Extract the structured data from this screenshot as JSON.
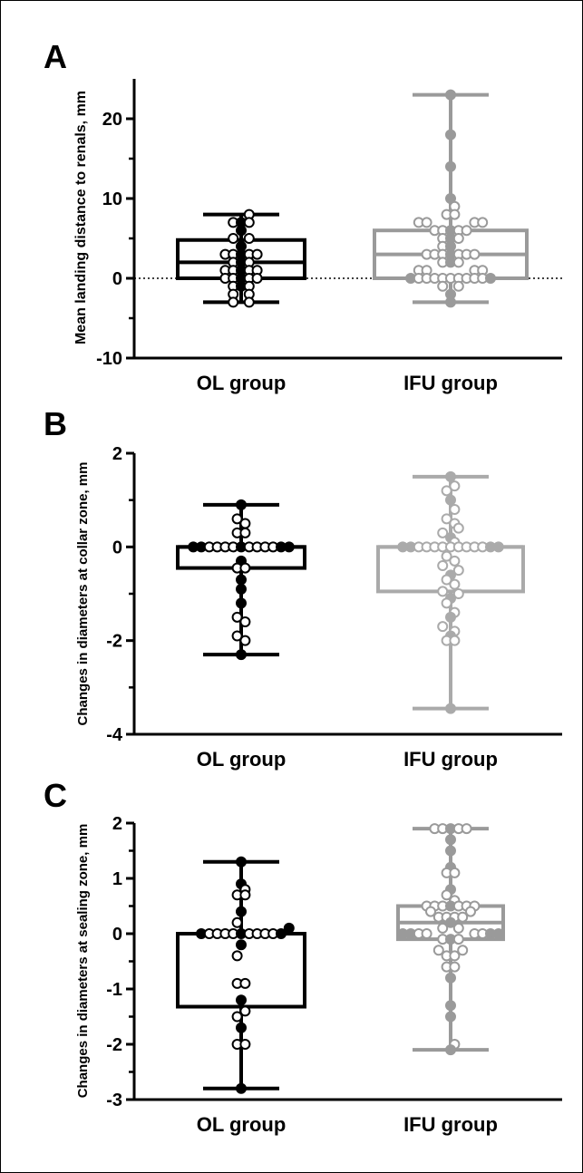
{
  "chart_data": [
    {
      "type": "box",
      "panel_label": "A",
      "ylabel": "Mean landing distance to renals, mm",
      "ylim": [
        -10,
        25
      ],
      "yticks": [
        -10,
        0,
        10,
        20
      ],
      "reference_line": 0,
      "categories": [
        "OL group",
        "IFU group"
      ],
      "colors": [
        "#000000",
        "#9a9a9a"
      ],
      "boxes": [
        {
          "min": -3,
          "q1": 0,
          "median": 2,
          "q3": 4.8,
          "max": 8
        },
        {
          "min": -3,
          "q1": 0,
          "median": 3,
          "q3": 6,
          "max": 23
        }
      ],
      "points": [
        [
          [
            8,
            1
          ],
          [
            7,
            -1
          ],
          [
            7,
            0
          ],
          [
            7,
            1
          ],
          [
            6,
            0
          ],
          [
            5,
            -1
          ],
          [
            5,
            1
          ],
          [
            4,
            0
          ],
          [
            3,
            -2
          ],
          [
            3,
            -1
          ],
          [
            3,
            0
          ],
          [
            3,
            1
          ],
          [
            3,
            2
          ],
          [
            2,
            -1
          ],
          [
            2,
            0
          ],
          [
            2,
            1
          ],
          [
            1,
            -2
          ],
          [
            1,
            -1
          ],
          [
            1,
            0
          ],
          [
            1,
            1
          ],
          [
            1,
            2
          ],
          [
            0,
            -2
          ],
          [
            0,
            -1
          ],
          [
            0,
            0
          ],
          [
            0,
            1
          ],
          [
            0,
            2
          ],
          [
            -1,
            -1
          ],
          [
            -1,
            0
          ],
          [
            -1,
            1
          ],
          [
            -2,
            -1
          ],
          [
            -2,
            1
          ],
          [
            -3,
            -1
          ],
          [
            -3,
            1
          ]
        ],
        [
          [
            23,
            0
          ],
          [
            18,
            0
          ],
          [
            14,
            0
          ],
          [
            10,
            0
          ],
          [
            9,
            0.5
          ],
          [
            8,
            -0.5
          ],
          [
            8,
            0.5
          ],
          [
            7,
            -4
          ],
          [
            7,
            -3
          ],
          [
            7,
            3
          ],
          [
            7,
            4
          ],
          [
            6,
            -2
          ],
          [
            6,
            -1
          ],
          [
            6,
            0
          ],
          [
            6,
            1
          ],
          [
            6,
            2
          ],
          [
            5,
            -1
          ],
          [
            5,
            0
          ],
          [
            5,
            1
          ],
          [
            4,
            -1
          ],
          [
            4,
            0
          ],
          [
            3,
            -3
          ],
          [
            3,
            -2
          ],
          [
            3,
            -1
          ],
          [
            3,
            0
          ],
          [
            3,
            1
          ],
          [
            3,
            2
          ],
          [
            3,
            3
          ],
          [
            2,
            -1
          ],
          [
            2,
            0
          ],
          [
            2,
            1
          ],
          [
            1,
            -4
          ],
          [
            1,
            -3
          ],
          [
            1,
            3
          ],
          [
            1,
            4
          ],
          [
            0,
            -5
          ],
          [
            0,
            -4
          ],
          [
            0,
            -3
          ],
          [
            0,
            -2
          ],
          [
            0,
            -1
          ],
          [
            0,
            0
          ],
          [
            0,
            1
          ],
          [
            0,
            2
          ],
          [
            0,
            3
          ],
          [
            0,
            4
          ],
          [
            0,
            5
          ],
          [
            -1,
            -1
          ],
          [
            -1,
            1
          ],
          [
            -2,
            0
          ],
          [
            -3,
            0
          ]
        ]
      ]
    },
    {
      "type": "box",
      "panel_label": "B",
      "ylabel": "Changes in diameters at collar zone, mm",
      "ylim": [
        -4,
        2
      ],
      "yticks": [
        -4,
        -2,
        0,
        2
      ],
      "categories": [
        "OL group",
        "IFU group"
      ],
      "colors": [
        "#000000",
        "#aaaaaa"
      ],
      "boxes": [
        {
          "min": -2.3,
          "q1": -0.45,
          "median": 0,
          "q3": 0,
          "max": 0.9
        },
        {
          "min": -3.45,
          "q1": -0.95,
          "median": 0,
          "q3": 0,
          "max": 1.5
        }
      ],
      "points": [
        [
          [
            0.9,
            0
          ],
          [
            0.6,
            -0.5
          ],
          [
            0.5,
            0.5
          ],
          [
            0.3,
            -0.5
          ],
          [
            0.3,
            0.5
          ],
          [
            0,
            -6
          ],
          [
            0,
            -5
          ],
          [
            0,
            -4
          ],
          [
            0,
            -3
          ],
          [
            0,
            -2
          ],
          [
            0,
            -1
          ],
          [
            0,
            0
          ],
          [
            0,
            1
          ],
          [
            0,
            2
          ],
          [
            0,
            3
          ],
          [
            0,
            4
          ],
          [
            0,
            5
          ],
          [
            0,
            6
          ],
          [
            -0.3,
            0
          ],
          [
            -0.45,
            -0.5
          ],
          [
            -0.45,
            0.5
          ],
          [
            -0.7,
            0
          ],
          [
            -0.9,
            0
          ],
          [
            -1.2,
            0
          ],
          [
            -1.5,
            -0.5
          ],
          [
            -1.6,
            0.5
          ],
          [
            -1.9,
            -0.5
          ],
          [
            -2.0,
            0.5
          ],
          [
            -2.3,
            0
          ]
        ],
        [
          [
            1.5,
            0
          ],
          [
            1.3,
            0.5
          ],
          [
            1.2,
            -0.5
          ],
          [
            1.0,
            0
          ],
          [
            0.8,
            0.5
          ],
          [
            0.6,
            -0.5
          ],
          [
            0.5,
            0.5
          ],
          [
            0.4,
            1
          ],
          [
            0.3,
            -1
          ],
          [
            0.2,
            0
          ],
          [
            0.1,
            0.5
          ],
          [
            0,
            -6
          ],
          [
            0,
            -5
          ],
          [
            0,
            -4
          ],
          [
            0,
            -3
          ],
          [
            0,
            -2
          ],
          [
            0,
            -1
          ],
          [
            0,
            0
          ],
          [
            0,
            1
          ],
          [
            0,
            2
          ],
          [
            0,
            3
          ],
          [
            0,
            4
          ],
          [
            0,
            5
          ],
          [
            0,
            6
          ],
          [
            -0.2,
            -0.5
          ],
          [
            -0.3,
            0.5
          ],
          [
            -0.4,
            -1
          ],
          [
            -0.5,
            1
          ],
          [
            -0.6,
            0
          ],
          [
            -0.7,
            -0.5
          ],
          [
            -0.8,
            0.5
          ],
          [
            -0.95,
            -1
          ],
          [
            -1.0,
            1
          ],
          [
            -1.1,
            0
          ],
          [
            -1.2,
            -0.5
          ],
          [
            -1.4,
            0.5
          ],
          [
            -1.5,
            0
          ],
          [
            -1.7,
            -1
          ],
          [
            -1.8,
            0.5
          ],
          [
            -1.9,
            0
          ],
          [
            -2.0,
            -0.5
          ],
          [
            -2.0,
            0.5
          ],
          [
            -3.45,
            0
          ]
        ]
      ]
    },
    {
      "type": "box",
      "panel_label": "C",
      "ylabel": "Changes in diameters at sealing zone, mm",
      "ylim": [
        -3,
        2
      ],
      "yticks": [
        -3,
        -2,
        -1,
        0,
        1,
        2
      ],
      "categories": [
        "OL group",
        "IFU group"
      ],
      "colors": [
        "#000000",
        "#9a9a9a"
      ],
      "boxes": [
        {
          "min": -2.8,
          "q1": -1.32,
          "median": 0,
          "q3": 0,
          "max": 1.3
        },
        {
          "min": -2.1,
          "q1": -0.1,
          "median": 0.2,
          "q3": 0.5,
          "max": 1.9
        }
      ],
      "points": [
        [
          [
            1.3,
            0
          ],
          [
            0.9,
            0
          ],
          [
            0.8,
            0.5
          ],
          [
            0.7,
            -0.5
          ],
          [
            0.7,
            0.5
          ],
          [
            0.4,
            0
          ],
          [
            0.2,
            -0.5
          ],
          [
            0.1,
            6
          ],
          [
            0,
            -5
          ],
          [
            0,
            -4
          ],
          [
            0,
            -3
          ],
          [
            0,
            -2
          ],
          [
            0,
            -1
          ],
          [
            0,
            0
          ],
          [
            0,
            1
          ],
          [
            0,
            2
          ],
          [
            0,
            3
          ],
          [
            0,
            4
          ],
          [
            0,
            5
          ],
          [
            -0.2,
            0
          ],
          [
            -0.4,
            -0.5
          ],
          [
            -0.9,
            -0.5
          ],
          [
            -0.9,
            0.5
          ],
          [
            -1.2,
            0
          ],
          [
            -1.4,
            0.5
          ],
          [
            -1.5,
            -0.5
          ],
          [
            -1.7,
            0
          ],
          [
            -2.0,
            -0.5
          ],
          [
            -2.0,
            0.5
          ],
          [
            -2.8,
            0
          ]
        ],
        [
          [
            1.9,
            -2
          ],
          [
            1.9,
            -1
          ],
          [
            1.9,
            0
          ],
          [
            1.9,
            1
          ],
          [
            1.9,
            2
          ],
          [
            1.7,
            0
          ],
          [
            1.5,
            0
          ],
          [
            1.2,
            0
          ],
          [
            1.1,
            -0.5
          ],
          [
            1.1,
            0.5
          ],
          [
            0.8,
            0
          ],
          [
            0.7,
            -0.5
          ],
          [
            0.6,
            0.5
          ],
          [
            0.5,
            -3
          ],
          [
            0.5,
            -2
          ],
          [
            0.5,
            -1
          ],
          [
            0.5,
            0
          ],
          [
            0.5,
            1
          ],
          [
            0.5,
            2
          ],
          [
            0.5,
            3
          ],
          [
            0.4,
            -2.5
          ],
          [
            0.4,
            2.5
          ],
          [
            0.3,
            -1.5
          ],
          [
            0.3,
            -0.5
          ],
          [
            0.3,
            0.5
          ],
          [
            0.3,
            1.5
          ],
          [
            0.2,
            0
          ],
          [
            0.1,
            -1
          ],
          [
            0.1,
            1
          ],
          [
            0,
            -6
          ],
          [
            0,
            -5
          ],
          [
            0,
            -4
          ],
          [
            0,
            -3
          ],
          [
            0,
            3
          ],
          [
            0,
            4
          ],
          [
            0,
            5
          ],
          [
            0,
            6
          ],
          [
            -0.1,
            -1
          ],
          [
            -0.1,
            0
          ],
          [
            -0.1,
            1
          ],
          [
            -0.3,
            -1.5
          ],
          [
            -0.3,
            1.5
          ],
          [
            -0.4,
            -0.5
          ],
          [
            -0.4,
            0.5
          ],
          [
            -0.6,
            -0.5
          ],
          [
            -0.6,
            0.5
          ],
          [
            -0.8,
            0
          ],
          [
            -1.3,
            0
          ],
          [
            -1.5,
            0
          ],
          [
            -2.0,
            0.5
          ],
          [
            -2.1,
            0
          ]
        ]
      ]
    }
  ]
}
